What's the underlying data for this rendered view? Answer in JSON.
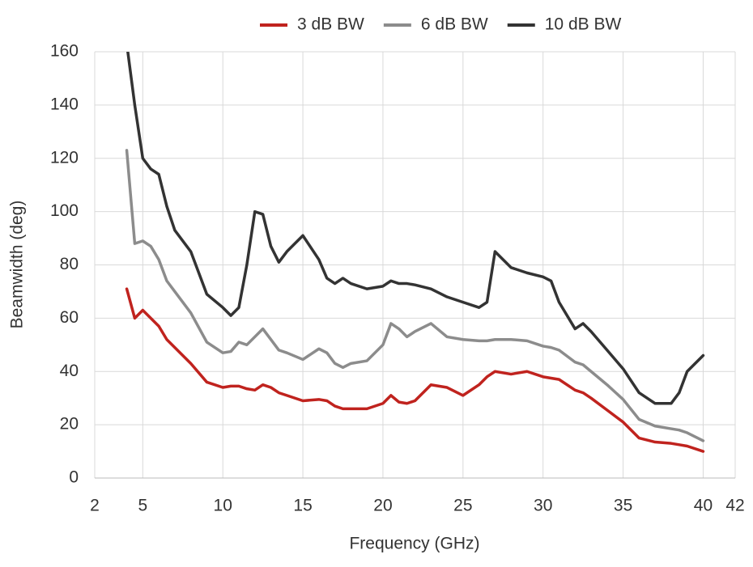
{
  "chart_data": {
    "type": "line",
    "x_label": "Frequency (GHz)",
    "y_label": "Beamwidth (deg)",
    "xlim": [
      2,
      42
    ],
    "xticks": [
      2,
      5,
      10,
      15,
      20,
      25,
      30,
      35,
      40,
      42
    ],
    "ylim": [
      0,
      160
    ],
    "yticks": [
      0,
      20,
      40,
      60,
      80,
      100,
      120,
      140,
      160
    ],
    "grid": true,
    "legend": "top",
    "x": [
      4,
      4.5,
      5,
      5.5,
      6,
      6.5,
      7,
      8,
      9,
      10,
      10.5,
      11,
      11.5,
      12,
      12.5,
      13,
      13.5,
      14,
      15,
      16,
      16.5,
      17,
      17.5,
      18,
      19,
      20,
      20.5,
      21,
      21.5,
      22,
      23,
      24,
      25,
      26,
      26.5,
      27,
      28,
      29,
      30,
      30.5,
      31,
      32,
      32.5,
      33,
      34,
      35,
      36,
      37,
      38,
      38.5,
      39,
      40
    ],
    "series": [
      {
        "name": "3 dB BW",
        "color": "#c0231e",
        "values": [
          71,
          60,
          63,
          60,
          57,
          52,
          49,
          43,
          36,
          34,
          34.5,
          34.5,
          33.5,
          33,
          35,
          34,
          32,
          31,
          29,
          29.5,
          29,
          27,
          26,
          26,
          26,
          28,
          31,
          28.5,
          28,
          29,
          35,
          34,
          31,
          35,
          38,
          40,
          39,
          40,
          38,
          37.5,
          37,
          33,
          32,
          30,
          25.5,
          21,
          15,
          13.5,
          13,
          12.5,
          12,
          10
        ]
      },
      {
        "name": "6 dB BW",
        "color": "#8c8c8c",
        "values": [
          123,
          88,
          89,
          87,
          82,
          74,
          70,
          62,
          51,
          47,
          47.5,
          51,
          50,
          53,
          56,
          52,
          48,
          47,
          44.5,
          48.5,
          47,
          43,
          41.5,
          43,
          44,
          50,
          58,
          56,
          53,
          55,
          58,
          53,
          52,
          51.5,
          51.5,
          52,
          52,
          51.5,
          49.5,
          49,
          48,
          43.5,
          42.5,
          40,
          35,
          29.5,
          22,
          19.5,
          18.5,
          18,
          17,
          14
        ]
      },
      {
        "name": "10 dB BW",
        "color": "#333333",
        "values": [
          163,
          140,
          120,
          116,
          114,
          102,
          93,
          85,
          69,
          64,
          61,
          64,
          80,
          100,
          99,
          87,
          81,
          85,
          91,
          82,
          75,
          73,
          75,
          73,
          71,
          72,
          74,
          73,
          73,
          72.5,
          71,
          68,
          66,
          64,
          66,
          85,
          79,
          77,
          75.5,
          74,
          66,
          56,
          58,
          55,
          48,
          41,
          32,
          28,
          28,
          32,
          40,
          46
        ]
      }
    ]
  }
}
